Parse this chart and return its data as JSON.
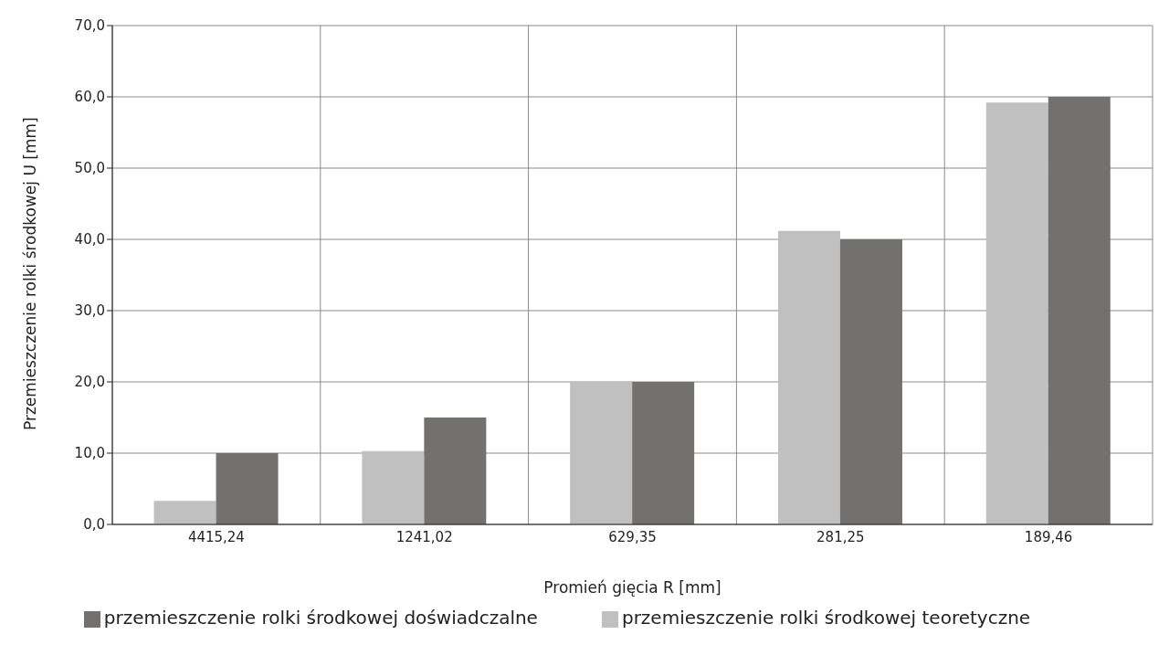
{
  "chart_data": {
    "type": "bar",
    "xlabel": "Promień gięcia R [mm]",
    "ylabel": "Przemieszczenie rolki środkowej U [mm]",
    "categories": [
      "4415,24",
      "1241,02",
      "629,35",
      "281,25",
      "189,46"
    ],
    "series": [
      {
        "name": "przemieszczenie rolki środkowej teoretyczne",
        "color": "#c0c0c0",
        "values": [
          3.3,
          10.3,
          20,
          41.2,
          59.2
        ]
      },
      {
        "name": "przemieszczenie rolki środkowej doświadczalne",
        "color": "#727170",
        "values": [
          10,
          15,
          20,
          40,
          60
        ]
      }
    ],
    "ylim": [
      0,
      70
    ],
    "yticks": [
      {
        "value": 0,
        "label": "0,0"
      },
      {
        "value": 10,
        "label": "10,0"
      },
      {
        "value": 20,
        "label": "20,0"
      },
      {
        "value": 30,
        "label": "30,0"
      },
      {
        "value": 40,
        "label": "40,0"
      },
      {
        "value": 50,
        "label": "50,0"
      },
      {
        "value": 60,
        "label": "60,0"
      },
      {
        "value": 70,
        "label": "70,0"
      }
    ],
    "grid": true,
    "legend": "bottom"
  }
}
